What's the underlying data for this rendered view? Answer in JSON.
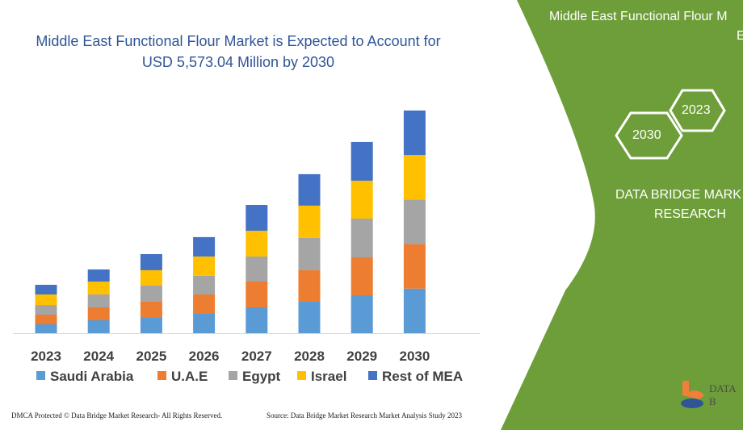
{
  "title_line1": "Middle East Functional Flour Market is Expected to Account for",
  "title_line2": "USD 5,573.04 Million by 2030",
  "footer_left": "DMCA Protected © Data Bridge Market Research-  All Rights Reserved.",
  "footer_right": "Source: Data Bridge Market Research  Market Analysis Study 2023",
  "side_panel": {
    "title_line1": "Middle East Functional Flour M",
    "title_line2": "E",
    "hex_2023": "2023",
    "hex_2030": "2030",
    "brand_line1": "DATA BRIDGE MARK",
    "brand_line2": "RESEARCH",
    "logo_text": "DATA B",
    "background_color": "#6e9e3a"
  },
  "chart_data": {
    "type": "bar",
    "stacked": true,
    "categories": [
      "2023",
      "2024",
      "2025",
      "2026",
      "2027",
      "2028",
      "2029",
      "2030"
    ],
    "unit": "USD Million (estimated)",
    "series": [
      {
        "name": "Saudi Arabia",
        "color": "#5b9bd5",
        "values": [
          222,
          323,
          384,
          485,
          646,
          788,
          949,
          1115
        ]
      },
      {
        "name": "U.A.E",
        "color": "#ed7d31",
        "values": [
          242,
          323,
          404,
          485,
          646,
          788,
          949,
          1115
        ]
      },
      {
        "name": "Egypt",
        "color": "#a5a5a5",
        "values": [
          242,
          323,
          404,
          465,
          626,
          808,
          970,
          1115
        ]
      },
      {
        "name": "Israel",
        "color": "#ffc000",
        "values": [
          263,
          323,
          384,
          485,
          646,
          808,
          949,
          1114
        ]
      },
      {
        "name": "Rest of MEA",
        "color": "#4472c4",
        "values": [
          242,
          303,
          404,
          485,
          646,
          788,
          970,
          1114
        ]
      }
    ],
    "legend_position": "bottom",
    "grid": false,
    "y_axis_visible": false
  }
}
